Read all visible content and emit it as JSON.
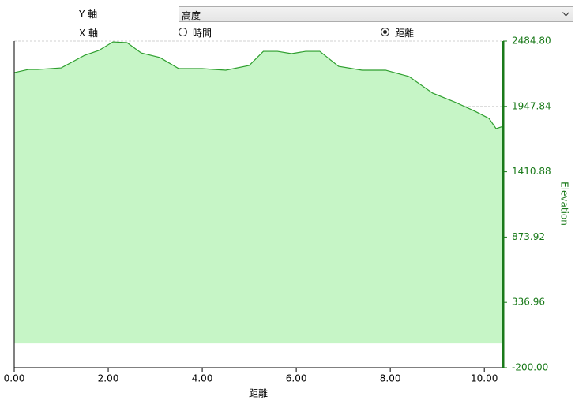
{
  "controls": {
    "y_axis_label": "Y 軸",
    "y_axis_select": "高度",
    "x_axis_label": "X 軸",
    "x_options": [
      {
        "label": "時間",
        "selected": false
      },
      {
        "label": "距離",
        "selected": true
      }
    ]
  },
  "chart_data": {
    "type": "area",
    "x_label": "距離",
    "y_label": "Elevation",
    "x": [
      0,
      0.3,
      0.5,
      1.0,
      1.5,
      1.8,
      2.1,
      2.4,
      2.7,
      3.1,
      3.5,
      4.0,
      4.5,
      5.0,
      5.3,
      5.6,
      5.9,
      6.2,
      6.5,
      6.9,
      7.4,
      7.9,
      8.4,
      8.9,
      9.4,
      9.8,
      10.1,
      10.25,
      10.4
    ],
    "values": [
      2225,
      2251,
      2251,
      2264,
      2368,
      2407,
      2478,
      2472,
      2387,
      2349,
      2258,
      2258,
      2245,
      2284,
      2400,
      2400,
      2381,
      2400,
      2400,
      2277,
      2245,
      2245,
      2193,
      2057,
      1979,
      1908,
      1849,
      1765,
      1784
    ],
    "color": "#2e9e2e",
    "fill_color": "#c6f5c6",
    "axis_color": "#1a7a1a",
    "xlim": [
      0,
      10.4
    ],
    "xticks": [
      {
        "value": 0,
        "label": "0.00"
      },
      {
        "value": 2,
        "label": "2.00"
      },
      {
        "value": 4,
        "label": "4.00"
      },
      {
        "value": 6,
        "label": "6.00"
      },
      {
        "value": 8,
        "label": "8.00"
      },
      {
        "value": 10,
        "label": "10.00"
      }
    ],
    "ylim": [
      -200,
      2484.8
    ],
    "yticks": [
      {
        "value": -200,
        "label": "-200.00"
      },
      {
        "value": 336.96,
        "label": "336.96"
      },
      {
        "value": 873.92,
        "label": "873.92"
      },
      {
        "value": 1410.88,
        "label": "1410.88"
      },
      {
        "value": 1947.84,
        "label": "1947.84"
      },
      {
        "value": 2484.8,
        "label": "2484.80"
      }
    ],
    "grid": true
  }
}
